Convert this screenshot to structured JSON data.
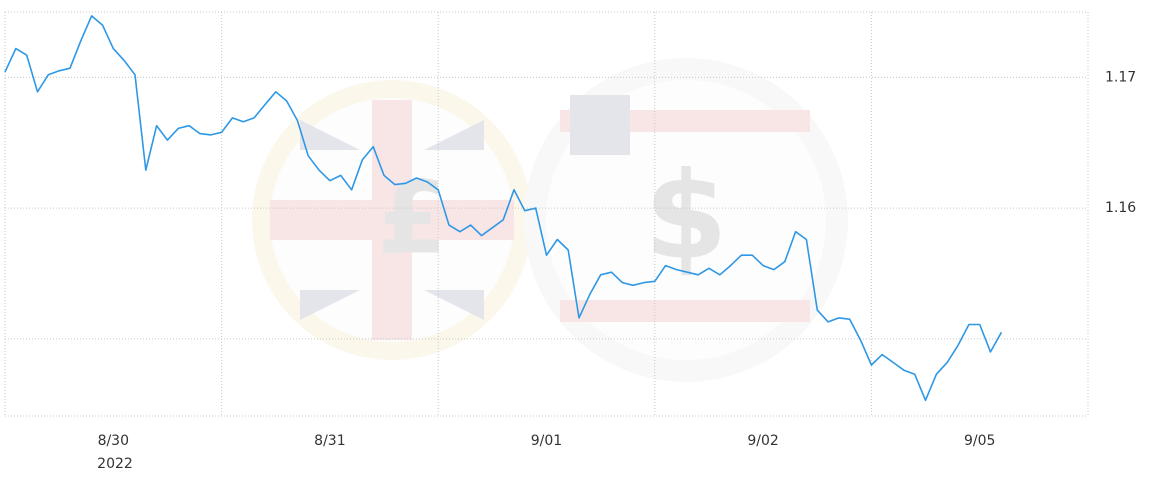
{
  "chart_data": {
    "type": "line",
    "x": [
      0,
      0.05,
      0.1,
      0.15,
      0.2,
      0.25,
      0.3,
      0.35,
      0.4,
      0.45,
      0.5,
      0.55,
      0.6,
      0.65,
      0.7,
      0.75,
      0.8,
      0.85,
      0.9,
      0.95,
      1,
      1.05,
      1.1,
      1.15,
      1.2,
      1.25,
      1.3,
      1.35,
      1.4,
      1.45,
      1.5,
      1.55,
      1.6,
      1.65,
      1.7,
      1.75,
      1.8,
      1.85,
      1.9,
      1.95,
      2,
      2.05,
      2.1,
      2.15,
      2.2,
      2.25,
      2.3,
      2.35,
      2.4,
      2.45,
      2.5,
      2.55,
      2.6,
      2.65,
      2.7,
      2.75,
      2.8,
      2.85,
      2.9,
      2.95,
      3,
      3.05,
      3.1,
      3.15,
      3.2,
      3.25,
      3.3,
      3.35,
      3.4,
      3.45,
      3.5,
      3.55,
      3.6,
      3.65,
      3.7,
      3.75,
      3.8,
      3.85,
      3.9,
      3.95,
      4,
      4.05,
      4.1,
      4.15,
      4.2,
      4.25,
      4.3,
      4.35,
      4.4,
      4.45,
      4.5,
      4.55,
      4.6
    ],
    "series": [
      {
        "color": "#2e98e6",
        "values": [
          1.1704,
          1.1722,
          1.1717,
          1.1689,
          1.1702,
          1.1705,
          1.1707,
          1.1728,
          1.1747,
          1.174,
          1.1722,
          1.1713,
          1.1702,
          1.1629,
          1.1663,
          1.1652,
          1.1661,
          1.1663,
          1.1657,
          1.1656,
          1.1658,
          1.1669,
          1.1666,
          1.1669,
          1.1679,
          1.1689,
          1.1682,
          1.1667,
          1.164,
          1.1629,
          1.1621,
          1.1625,
          1.1614,
          1.1637,
          1.1647,
          1.1625,
          1.1618,
          1.1619,
          1.1623,
          1.162,
          1.1614,
          1.1587,
          1.1582,
          1.1587,
          1.1579,
          1.1585,
          1.1591,
          1.1614,
          1.1598,
          1.16,
          1.1564,
          1.1576,
          1.1568,
          1.1516,
          1.1534,
          1.1549,
          1.1551,
          1.1543,
          1.1541,
          1.1543,
          1.1544,
          1.1556,
          1.1553,
          1.1551,
          1.1549,
          1.1554,
          1.1549,
          1.1556,
          1.1564,
          1.1564,
          1.1556,
          1.1553,
          1.1559,
          1.1582,
          1.1576,
          1.1522,
          1.1513,
          1.1516,
          1.1515,
          1.1499,
          1.148,
          1.1488,
          1.1482,
          1.1476,
          1.1473,
          1.1453,
          1.1473,
          1.1482,
          1.1495,
          1.1511,
          1.1511,
          1.149,
          1.1505
        ]
      }
    ],
    "xlim": [
      0,
      5
    ],
    "xticks": [
      {
        "value": 0.5,
        "label": "8/30"
      },
      {
        "value": 1.5,
        "label": "8/31"
      },
      {
        "value": 2.5,
        "label": "9/01"
      },
      {
        "value": 3.5,
        "label": "9/02"
      },
      {
        "value": 4.5,
        "label": "9/05"
      }
    ],
    "xgrid": [
      0,
      1,
      2,
      3,
      4,
      5
    ],
    "year": "2022",
    "ylim": [
      1.1441,
      1.175
    ],
    "yticks": [
      1.16,
      1.17
    ],
    "ygrid": [
      1.15,
      1.16,
      1.17
    ],
    "grid": true
  }
}
